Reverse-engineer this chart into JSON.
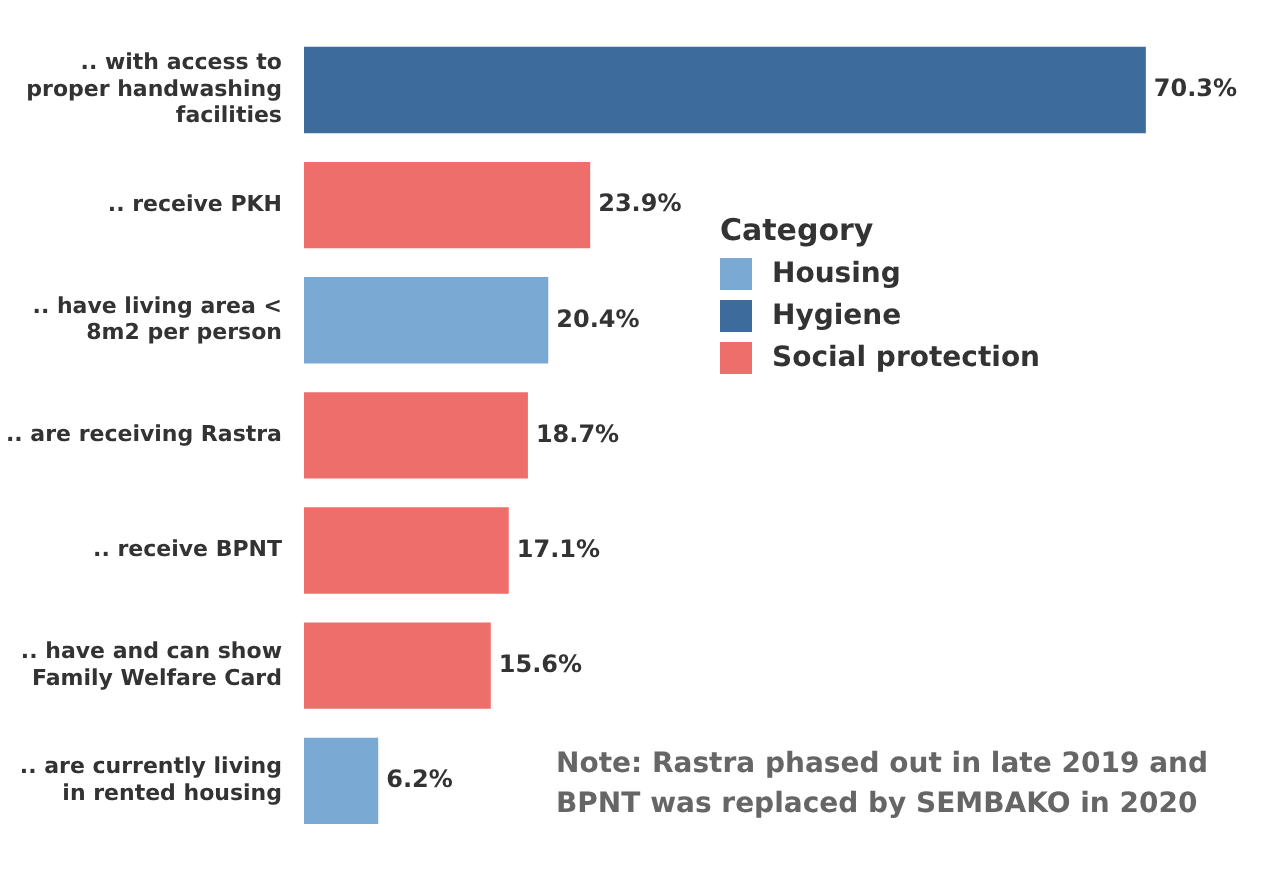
{
  "chart_data": {
    "type": "bar",
    "orientation": "horizontal",
    "legend_title": "Category",
    "legend": "right",
    "categories": [
      ".. with access to proper handwashing facilities",
      ".. receive PKH",
      ".. have living area < 8m2 per person",
      ".. are receiving Rastra",
      ".. receive BPNT",
      ".. have and can show Family Welfare Card",
      ".. are currently living in rented housing"
    ],
    "series": [
      {
        "name": "Housing",
        "color": "#7aaad3",
        "values": [
          null,
          null,
          20.4,
          null,
          null,
          null,
          6.2
        ],
        "value_labels": [
          null,
          null,
          "20.4%",
          null,
          null,
          null,
          "6.2%"
        ]
      },
      {
        "name": "Hygiene",
        "color": "#3d6b9b",
        "values": [
          70.3,
          null,
          null,
          null,
          null,
          null,
          null
        ],
        "value_labels": [
          "70.3%",
          null,
          null,
          null,
          null,
          null,
          null
        ]
      },
      {
        "name": "Social protection",
        "color": "#ed6e6a",
        "values": [
          null,
          23.9,
          null,
          18.7,
          17.1,
          15.6,
          null
        ],
        "value_labels": [
          null,
          "23.9%",
          null,
          "18.7%",
          "17.1%",
          "15.6%",
          null
        ]
      }
    ],
    "annotations": [
      "Note: Rastra phased out in late 2019 and BPNT was replaced by SEMBAKO in 2020"
    ]
  }
}
